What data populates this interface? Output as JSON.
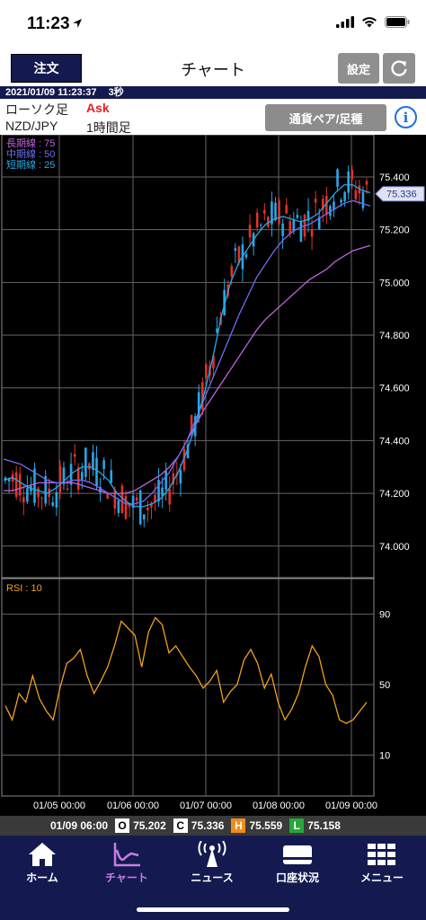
{
  "status_bar": {
    "time": "11:23"
  },
  "nav": {
    "order_label": "注文",
    "title": "チャート",
    "settings_label": "設定"
  },
  "info_strip": {
    "datetime": "2021/01/09 11:23:37",
    "refresh": "3秒"
  },
  "info_panel": {
    "chart_type": "ローソク足",
    "price_type": "Ask",
    "pair": "NZD/JPY",
    "timeframe": "1時間足",
    "pair_button": "通貨ペア/足種"
  },
  "chart_data": [
    {
      "type": "candlestick",
      "legend": [
        {
          "name": "長期線 : 75",
          "color": "#c063e0"
        },
        {
          "name": "中期線 : 50",
          "color": "#6d6df0"
        },
        {
          "name": "短期線 : 25",
          "color": "#2aa6e6"
        }
      ],
      "y_ticks": [
        "75.400",
        "75.200",
        "75.000",
        "74.800",
        "74.600",
        "74.400",
        "74.200",
        "74.000"
      ],
      "ylim": [
        73.88,
        75.56
      ],
      "current_price": "75.336",
      "up_color": "#2aa6e6",
      "down_color": "#e0332b",
      "ma_short": [
        74.25,
        74.26,
        74.24,
        74.22,
        74.21,
        74.2,
        74.22,
        74.25,
        74.28,
        74.3,
        74.3,
        74.28,
        74.25,
        74.2,
        74.17,
        74.15,
        74.15,
        74.16,
        74.18,
        74.22,
        74.28,
        74.36,
        74.46,
        74.58,
        74.72,
        74.88,
        75.0,
        75.08,
        75.13,
        75.18,
        75.22,
        75.24,
        75.25,
        75.24,
        75.23,
        75.24,
        75.26,
        75.3,
        75.34,
        75.37,
        75.37,
        75.35,
        75.34
      ],
      "ma_mid": [
        74.33,
        74.32,
        74.31,
        74.29,
        74.27,
        74.25,
        74.24,
        74.24,
        74.25,
        74.25,
        74.24,
        74.22,
        74.2,
        74.18,
        74.16,
        74.16,
        74.17,
        74.2,
        74.24,
        74.28,
        74.34,
        74.4,
        74.48,
        74.56,
        74.64,
        74.72,
        74.8,
        74.88,
        74.95,
        75.02,
        75.07,
        75.12,
        75.16,
        75.19,
        75.21,
        75.22,
        75.24,
        75.26,
        75.28,
        75.3,
        75.31,
        75.3,
        75.29
      ],
      "ma_long": [
        74.21,
        74.21,
        74.22,
        74.23,
        74.24,
        74.24,
        74.24,
        74.24,
        74.24,
        74.23,
        74.22,
        74.21,
        74.2,
        74.2,
        74.2,
        74.21,
        74.23,
        74.25,
        74.27,
        74.3,
        74.34,
        74.4,
        74.46,
        74.52,
        74.57,
        74.62,
        74.67,
        74.72,
        74.77,
        74.82,
        74.86,
        74.89,
        74.92,
        74.95,
        74.98,
        75.01,
        75.03,
        75.05,
        75.08,
        75.1,
        75.12,
        75.13,
        75.14
      ]
    },
    {
      "type": "line",
      "title": "RSI : 10",
      "color": "#f0a020",
      "y_ticks": [
        "90",
        "50",
        "10"
      ],
      "ylim": [
        0,
        100
      ],
      "values": [
        38,
        30,
        45,
        40,
        55,
        42,
        35,
        30,
        48,
        62,
        65,
        70,
        55,
        45,
        52,
        60,
        72,
        86,
        82,
        78,
        60,
        80,
        88,
        84,
        68,
        72,
        66,
        60,
        55,
        48,
        52,
        58,
        40,
        46,
        50,
        64,
        70,
        62,
        48,
        56,
        40,
        30,
        36,
        45,
        60,
        72,
        66,
        50,
        44,
        30,
        28,
        30,
        35,
        40
      ]
    }
  ],
  "x_axis": {
    "labels": [
      "01/05 00:00",
      "01/06 00:00",
      "01/07 00:00",
      "01/08 00:00",
      "01/09 00:00"
    ]
  },
  "ohlc": {
    "time": "01/09 06:00",
    "open_key": "O",
    "open": "75.202",
    "close_key": "C",
    "close": "75.336",
    "high_key": "H",
    "high": "75.559",
    "low_key": "L",
    "low": "75.158"
  },
  "tabs": [
    {
      "label": "ホーム",
      "icon": "home-icon"
    },
    {
      "label": "チャート",
      "icon": "chart-icon",
      "active": true
    },
    {
      "label": "ニュース",
      "icon": "news-antenna-icon"
    },
    {
      "label": "口座状況",
      "icon": "account-card-icon"
    },
    {
      "label": "メニュー",
      "icon": "menu-grid-icon"
    }
  ]
}
